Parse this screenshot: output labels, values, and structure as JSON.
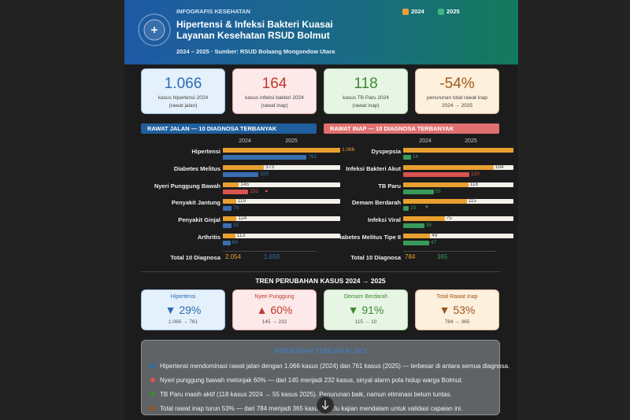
{
  "header": {
    "kicker": "INFOGRAFIS KESEHATAN",
    "title_lines": [
      "Hipertensi & Infeksi Bakteri Kuasai",
      "Layanan Kesehatan RSUD Bolmut"
    ],
    "subtitle": "2024 – 2025 · Sumber: RSUD Bolaang Mongondow Utara",
    "legend": [
      {
        "label": "2024",
        "color": "#e8a030"
      },
      {
        "label": "2025",
        "color": "#3fb58a"
      }
    ]
  },
  "stats": [
    {
      "value": "1.066",
      "lines": [
        "kasus hipertensi 2024",
        "(rawat jalan)"
      ],
      "color": "#2a6db5",
      "bg": "#e4f0fb"
    },
    {
      "value": "164",
      "lines": [
        "kasus infeksi bakteri 2024",
        "(rawat inap)"
      ],
      "color": "#c0392b",
      "bg": "#fde9e9"
    },
    {
      "value": "118",
      "lines": [
        "kasus TB Paru 2024",
        "(rawat inap)"
      ],
      "color": "#3b8a2e",
      "bg": "#e7f5e5"
    },
    {
      "value": "-54%",
      "lines": [
        "penurunan total rawat inap",
        "2024 → 2025"
      ],
      "color": "#a0561a",
      "bg": "#fdf0dc"
    }
  ],
  "panels": [
    {
      "title": "RAWAT JALAN — 10 DIAGNOSA TERBANYAK",
      "color": "#1f5f9e",
      "years": [
        "2024",
        "2025"
      ],
      "bar_colors": [
        "#e8a030",
        "#3a6fb0"
      ],
      "rows": [
        {
          "label": "Hipertensi",
          "values": [
            1066,
            761
          ],
          "value_labels": [
            "1.066",
            "761"
          ]
        },
        {
          "label": "Diabetes Melitus",
          "values": [
            373,
            325
          ]
        },
        {
          "label": "Nyeri Punggung Bawah",
          "values": [
            145,
            232
          ],
          "trend": "▲",
          "color_2025": "#d9534f"
        },
        {
          "label": "Penyakit Jantung",
          "values": [
            119,
            79
          ]
        },
        {
          "label": "Penyakit Ginjal",
          "values": [
            124,
            81
          ]
        },
        {
          "label": "Arthritis",
          "values": [
            113,
            69
          ]
        }
      ],
      "total": {
        "label": "Total 10 Diagnosa",
        "values": [
          2054,
          1650
        ],
        "value_labels": [
          "2.054",
          "1.650"
        ]
      }
    },
    {
      "title": "RAWAT INAP — 10 DIAGNOSA TERBANYAK",
      "color": "#e07070",
      "years": [
        "2024",
        "2025"
      ],
      "bar_colors": [
        "#e8a030",
        "#3a9a5a"
      ],
      "rows": [
        {
          "label": "Dyspepsia",
          "values": [
            200,
            14
          ],
          "value_labels": [
            null,
            "14"
          ]
        },
        {
          "label": "Infeksi Bakteri Akut",
          "values": [
            164,
            120
          ],
          "color_2025": "#d9534f"
        },
        {
          "label": "TB Paru",
          "values": [
            118,
            55
          ]
        },
        {
          "label": "Demam Berdarah",
          "values": [
            115,
            10
          ],
          "trend": "▼"
        },
        {
          "label": "Infeksi Viral",
          "values": [
            75,
            38
          ]
        },
        {
          "label": "Diabetes Melitus Tipe II",
          "values": [
            49,
            47
          ]
        }
      ],
      "total": {
        "label": "Total 10 Diagnosa",
        "values": [
          784,
          365
        ]
      }
    }
  ],
  "trend": {
    "title": "TREN PERUBAHAN KASUS 2024 → 2025",
    "cards": [
      {
        "label": "Hipertensi",
        "change": "▼ 29%",
        "detail": "1.066 → 761",
        "color": "#2a6db5",
        "bg": "#e4f0fb"
      },
      {
        "label": "Nyeri Punggung",
        "change": "▲ 60%",
        "detail": "145 → 232",
        "color": "#c0392b",
        "bg": "#fde9e9"
      },
      {
        "label": "Demam Berdarah",
        "change": "▼ 91%",
        "detail": "115 → 10",
        "color": "#3b8a2e",
        "bg": "#e7f5e5"
      },
      {
        "label": "Total Rawat Inap",
        "change": "▼ 53%",
        "detail": "784 → 365",
        "color": "#a0561a",
        "bg": "#fdf0dc"
      }
    ]
  },
  "summary": {
    "title": "RINGKASAN TEMUAN KUNCI",
    "items": [
      {
        "text": "Hipertensi mendominasi rawat jalan dengan 1.066 kasus (2024) dan 761 kasus (2025) — terbesar di antara semua diagnosa.",
        "color": "#2a6db5"
      },
      {
        "text": "Nyeri punggung bawah melonjak 60% — dari 145 menjadi 232 kasus, sinyal alarm pola hidup warga Bolmut.",
        "color": "#d9534f"
      },
      {
        "text": "TB Paru masih aktif (118 kasus 2024 → 55 kasus 2025). Penurunan baik, namun eliminasi belum tuntas.",
        "color": "#3b8a2e"
      },
      {
        "text": "Total rawat inap turun 53% — dari 784 menjadi 365 kasus. Perlu kajian mendalam untuk validasi capaian ini.",
        "color": "#a0561a"
      }
    ]
  }
}
